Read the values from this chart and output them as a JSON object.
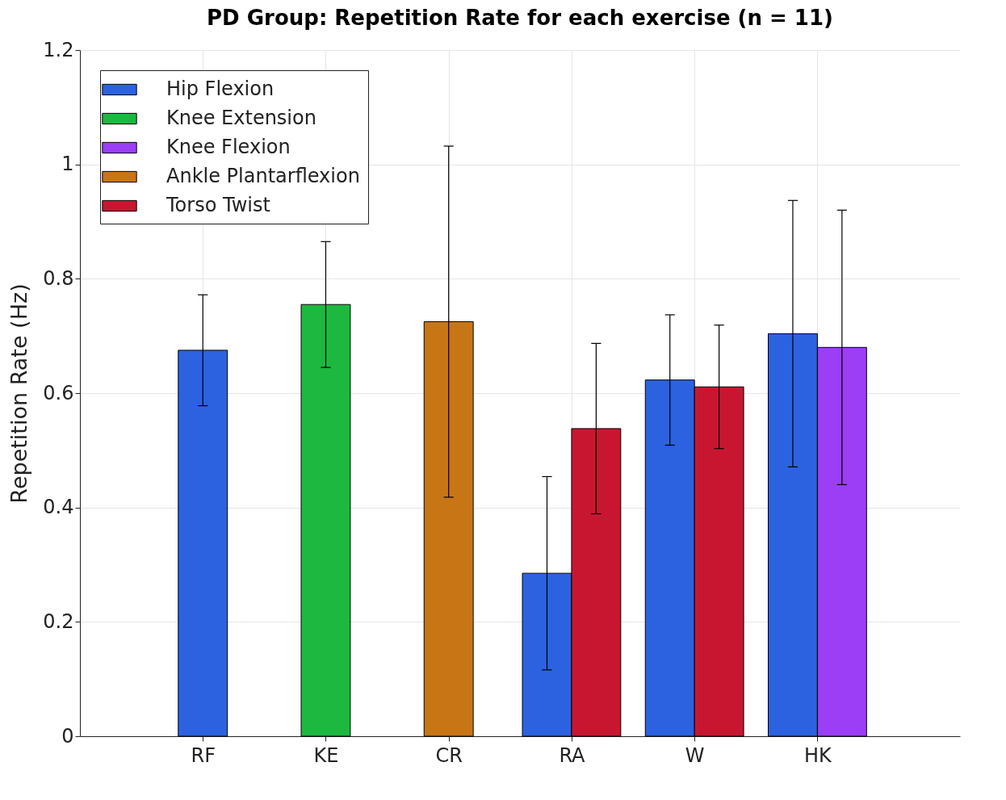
{
  "chart_data": {
    "type": "bar",
    "title": "PD Group: Repetition Rate for each exercise (n = 11)",
    "ylabel": "Repetition Rate (Hz)",
    "categories": [
      "RF",
      "KE",
      "CR",
      "RA",
      "W",
      "HK"
    ],
    "series": [
      {
        "name": "Hip Flexion",
        "color": "#2c62e0",
        "values": [
          0.675,
          null,
          null,
          0.285,
          0.623,
          0.704
        ],
        "errors": [
          0.097,
          null,
          null,
          0.169,
          0.114,
          0.233
        ]
      },
      {
        "name": "Knee Extension",
        "color": "#1db83f",
        "values": [
          null,
          0.755,
          null,
          null,
          null,
          null
        ],
        "errors": [
          null,
          0.11,
          null,
          null,
          null,
          null
        ]
      },
      {
        "name": "Knee Flexion",
        "color": "#9b3ef5",
        "values": [
          null,
          null,
          null,
          null,
          null,
          0.68
        ],
        "errors": [
          null,
          null,
          null,
          null,
          null,
          0.24
        ]
      },
      {
        "name": "Ankle Plantarflexion",
        "color": "#c87516",
        "values": [
          null,
          null,
          0.725,
          null,
          null,
          null
        ],
        "errors": [
          null,
          null,
          0.307,
          null,
          null,
          null
        ]
      },
      {
        "name": "Torso Twist",
        "color": "#c81631",
        "values": [
          null,
          null,
          null,
          0.538,
          0.611,
          null
        ],
        "errors": [
          null,
          null,
          null,
          0.149,
          0.108,
          null
        ]
      }
    ],
    "ylim": [
      0,
      1.2
    ],
    "yticks": [
      0,
      0.2,
      0.4,
      0.6,
      0.8,
      1,
      1.2
    ],
    "grid": true,
    "legend": "top left"
  }
}
